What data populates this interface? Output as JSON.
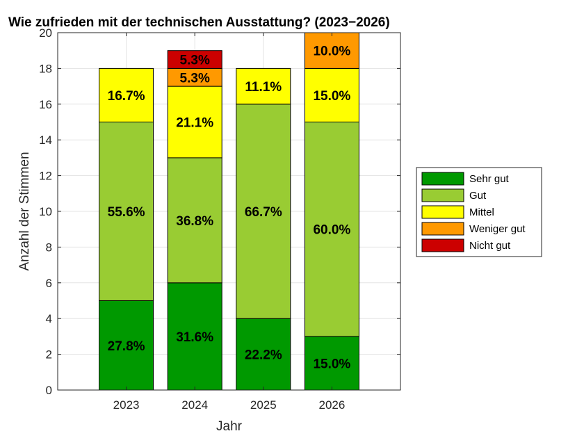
{
  "chart_data": {
    "type": "bar",
    "stacked": true,
    "title": "Wie zufrieden mit der technischen Ausstattung? (2023−2026)",
    "xlabel": "Jahr",
    "ylabel": "Anzahl der Stimmen",
    "ylim": [
      0,
      20
    ],
    "yticks": [
      0,
      2,
      4,
      6,
      8,
      10,
      12,
      14,
      16,
      18,
      20
    ],
    "grid": true,
    "legend_position": "right",
    "categories": [
      "2023",
      "2024",
      "2025",
      "2026"
    ],
    "series": [
      {
        "name": "Sehr gut",
        "color": "#009900",
        "values": [
          5,
          6,
          4,
          3
        ],
        "labels": [
          "27.8%",
          "31.6%",
          "22.2%",
          "15.0%"
        ]
      },
      {
        "name": "Gut",
        "color": "#99cc33",
        "values": [
          10,
          7,
          12,
          12
        ],
        "labels": [
          "55.6%",
          "36.8%",
          "66.7%",
          "60.0%"
        ]
      },
      {
        "name": "Mittel",
        "color": "#ffff00",
        "values": [
          3,
          4,
          2,
          3
        ],
        "labels": [
          "16.7%",
          "21.1%",
          "11.1%",
          "15.0%"
        ]
      },
      {
        "name": "Weniger gut",
        "color": "#ff9900",
        "values": [
          0,
          1,
          0,
          2
        ],
        "labels": [
          "",
          "5.3%",
          "",
          "10.0%"
        ]
      },
      {
        "name": "Nicht gut",
        "color": "#cc0000",
        "values": [
          0,
          1,
          0,
          0
        ],
        "labels": [
          "",
          "5.3%",
          "",
          ""
        ]
      }
    ]
  }
}
